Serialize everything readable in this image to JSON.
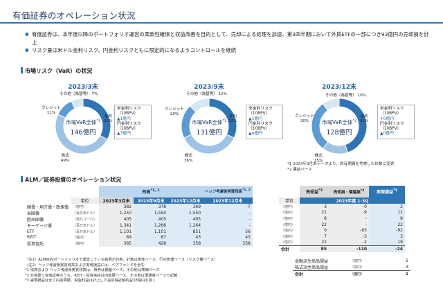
{
  "page": {
    "title": "有価証券のオペレーション状況"
  },
  "bullets": [
    "有価証券は、本年度以降のポートフォリオ運営の柔軟性確保と収益改善を目的として、売却による処理を加速、第3四半期において外貨ETFの一部につき93億円の売却損を計上",
    "リスク量は米ドル金利リスク、円金利リスクともに限定的になるようコントロールを継続"
  ],
  "var_section": {
    "title": "市場リスク（VaR）の状況",
    "center_label": "市場VaR全体",
    "charts": [
      {
        "period": "2023/3末",
        "total": "146億円",
        "total_note": "*1",
        "segments": [
          {
            "name": "金利",
            "pct": "33%",
            "value": 33,
            "color": "#2e75b6"
          },
          {
            "name": "株式",
            "pct": "49%",
            "value": 49,
            "color": "#9dc3e6"
          },
          {
            "name": "クレジット",
            "pct": "11%",
            "value": 11,
            "color": "#5b9bd5"
          },
          {
            "name": "その他（為替等）",
            "pct": "7%",
            "value": 7,
            "color": "#d6e6f5"
          }
        ],
        "risk_box": {
          "usd_label": "米金利リスク",
          "usd_unit": "（10BPV）",
          "usd_value": "▲1億円",
          "jpy_label": "円金利リスク",
          "jpy_unit": "（10BPV）",
          "jpy_value": "▲3億円"
        }
      },
      {
        "period": "2023/9末",
        "total": "131億円",
        "total_note": "*1",
        "segments": [
          {
            "name": "金利",
            "pct": "32%",
            "value": 32,
            "color": "#2e75b6"
          },
          {
            "name": "株式",
            "pct": "36%",
            "value": 36,
            "color": "#9dc3e6"
          },
          {
            "name": "クレジット",
            "pct": "20%",
            "value": 20,
            "color": "#5b9bd5"
          },
          {
            "name": "その他（為替等）",
            "pct": "12%",
            "value": 12,
            "color": "#d6e6f5"
          }
        ],
        "risk_box": {
          "usd_label": "米金利リスク",
          "usd_unit": "（10BPV）",
          "usd_value": "▲1億円",
          "jpy_label": "円金利リスク",
          "jpy_unit": "（10BPV）",
          "jpy_value": "▲4億円"
        }
      },
      {
        "period": "2023/12末",
        "total": "128億円",
        "total_note": "*2",
        "segments": [
          {
            "name": "金利",
            "pct": "45%",
            "value": 45,
            "color": "#2e75b6"
          },
          {
            "name": "株式",
            "pct": "15%",
            "value": 15,
            "color": "#9dc3e6"
          },
          {
            "name": "クレジット",
            "pct": "30%",
            "value": 30,
            "color": "#5b9bd5"
          },
          {
            "name": "その他（為替等）",
            "pct": "10%",
            "value": 10,
            "color": "#d6e6f5"
          }
        ],
        "risk_box": {
          "usd_label": "米金利リスク",
          "usd_unit": "（10BPV）",
          "usd_value": "+0億円",
          "jpy_label": "円金利リスク",
          "jpy_unit": "（10BPV）",
          "jpy_value": "▲0億円"
        }
      }
    ],
    "notes": [
      "*1 2023年3月末データより、保有期間を考慮した計数に変更",
      "*2 連結ベース"
    ]
  },
  "alm_section": {
    "title": "ALM／証券投資のオペレーション状況",
    "header_zandaka": "残高",
    "header_zandaka_note": "*1, 2",
    "header_hedge": "ヘッジ考慮後実質残高",
    "header_hedge_note": "*1, 2",
    "header_sale": "売却益",
    "header_sale_note": "*3",
    "header_loss": "売却損・償還損",
    "header_loss_note": "*3",
    "header_realized": "実現損益",
    "header_realized_note": "*3",
    "col_unit": "単位",
    "col_mar": "2023年3月末",
    "col_sep": "2023年9月末",
    "col_dec": "2023年12月末",
    "col_hedge_dec": "2023年12月末",
    "col_period": "2023年度 1-3Q",
    "rows": [
      {
        "label": "国債・地方債・政保債",
        "unit": "（億円）",
        "mar": "382",
        "sep": "378",
        "dec": "369",
        "hedge": "7",
        "unit2": "（億円）",
        "gain": "3",
        "loss": "-0",
        "real": "2"
      },
      {
        "label": "米国債",
        "unit": "（百万米ドル）",
        "mar": "1,250",
        "sep": "1,550",
        "dec": "1,550",
        "hedge": "-",
        "unit2": "（億円）",
        "gain": "21",
        "loss": "-9",
        "real": "11"
      },
      {
        "label": "欧州国債",
        "unit": "（百万ユーロ）",
        "mar": "405",
        "sep": "405",
        "dec": "405",
        "hedge": "-",
        "unit2": "（億円）",
        "gain": "8",
        "loss": "-",
        "real": "8"
      },
      {
        "label": "モーゲージ債",
        "unit": "（百万米ドル）",
        "mar": "1,341",
        "sep": "1,286",
        "dec": "1,264",
        "hedge": "-",
        "unit2": "（億円）",
        "gain": "22",
        "loss": "-",
        "real": "22"
      },
      {
        "label": "ETF",
        "unit": "（百万米ドル）",
        "mar": "1,101",
        "sep": "1,101",
        "dec": "851",
        "hedge": "56",
        "unit2": "（億円）",
        "gain": "0",
        "loss": "-93",
        "real": "-92"
      },
      {
        "label": "REIT",
        "unit": "（億円）",
        "mar": "69",
        "sep": "87",
        "dec": "43",
        "hedge": "43",
        "unit2": "（億円）",
        "gain": "7",
        "loss": "-3",
        "real": "3"
      },
      {
        "label": "投資信託",
        "unit": "（億円）",
        "mar": "385",
        "sep": "428",
        "dec": "358",
        "hedge": "358",
        "unit2": "（億円）",
        "gain": "22",
        "loss": "-2",
        "real": "19"
      }
    ],
    "total": {
      "label": "合計",
      "gain": "85",
      "loss": "-110",
      "real": "-24"
    },
    "extra": [
      {
        "label": "金融派生商品損益",
        "unit": "（億円）",
        "value": "5"
      },
      {
        "label": "株式派生商品損益",
        "unit": "（億円）",
        "value": "-3"
      },
      {
        "label": "合計",
        "unit": "（億円）",
        "value": "1"
      }
    ],
    "notes": [
      "（注1）ALM目的ポートフォリオで運営している銘柄が対象。計数は単体ベース、行内管理ベース（リスク量ベース）",
      "（注2）ヘッジ考慮後実質残高および実現損益には、ベアファンドを含む",
      "*1 残高および ヘッジ考慮後実質残高は、債券は額面ベース、その他は簿価ベース",
      "*2 外貨建て有価証券のうち、REIT・投資信託は円換算ベース、その他は現通貨ベースで記載",
      "*3 実現損益は全て円換算額、資金利益は計上した投資信託解約益38億円を除く"
    ]
  }
}
